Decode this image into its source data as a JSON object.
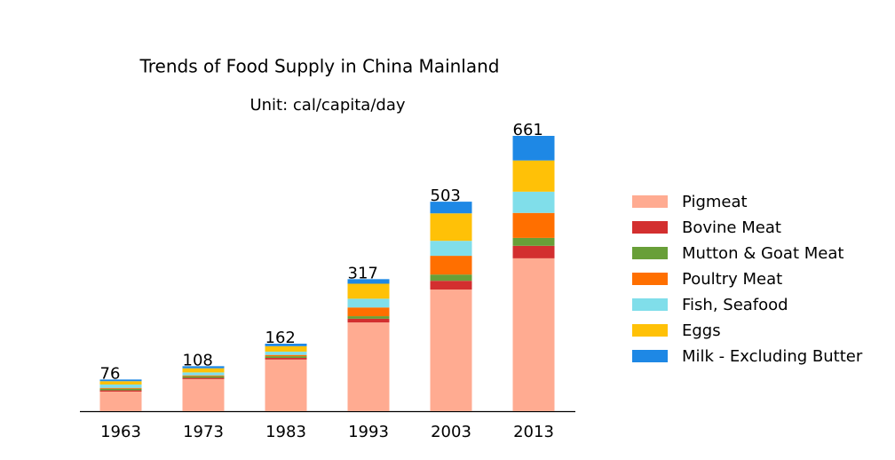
{
  "chart_data": {
    "type": "stacked-bar",
    "title": "Trends of Food Supply in China Mainland",
    "subtitle": "Unit: cal/capita/day",
    "categories": [
      "1963",
      "1973",
      "1983",
      "1993",
      "2003",
      "2013"
    ],
    "totals": [
      76,
      108,
      162,
      317,
      503,
      661
    ],
    "series": [
      {
        "name": "Pigmeat",
        "color": "#ffab91",
        "values": [
          47,
          77,
          124,
          213,
          292,
          367
        ]
      },
      {
        "name": "Bovine Meat",
        "color": "#d32f2f",
        "values": [
          3,
          3,
          4,
          9,
          21,
          30
        ]
      },
      {
        "name": "Mutton & Goat Meat",
        "color": "#689f38",
        "values": [
          4,
          4,
          4,
          6,
          15,
          19
        ]
      },
      {
        "name": "Poultry Meat",
        "color": "#ff6f00",
        "values": [
          2,
          2,
          3,
          21,
          45,
          60
        ]
      },
      {
        "name": "Fish, Seafood",
        "color": "#80deea",
        "values": [
          8,
          7,
          8,
          21,
          36,
          51
        ]
      },
      {
        "name": "Eggs",
        "color": "#ffc107",
        "values": [
          8,
          10,
          13,
          36,
          66,
          75
        ]
      },
      {
        "name": "Milk - Excluding Butter",
        "color": "#1e88e5",
        "values": [
          4,
          5,
          6,
          11,
          28,
          59
        ]
      }
    ],
    "legend": "right"
  }
}
